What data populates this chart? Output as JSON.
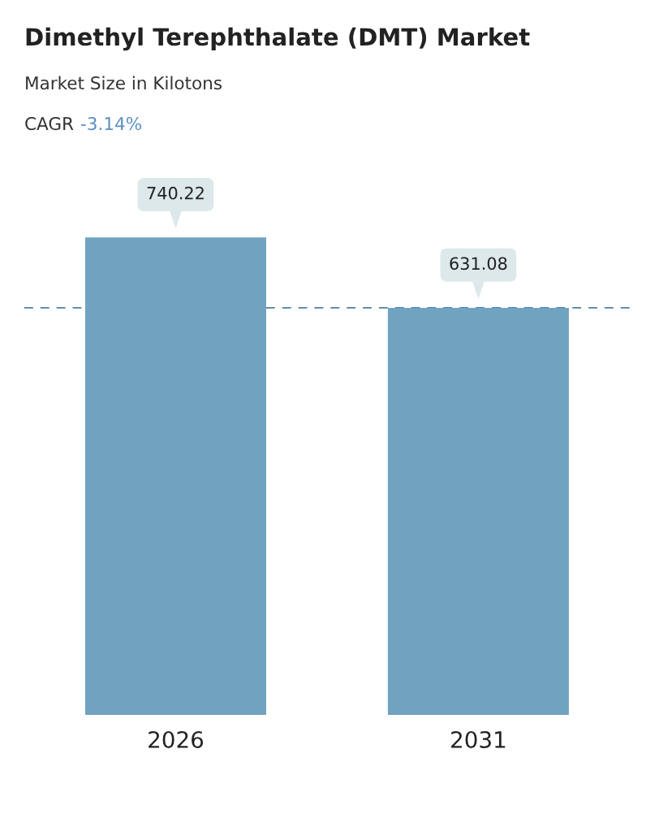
{
  "chart_data": {
    "type": "bar",
    "title": "Dimethyl Terephthalate (DMT) Market",
    "subtitle": "Market Size in Kilotons",
    "annotations": [
      "CAGR",
      "-3.14%"
    ],
    "categories": [
      "2026",
      "2031"
    ],
    "values": [
      740.22,
      631.08
    ],
    "color": "#6fa3c0",
    "data_labels": true,
    "ref_lines": [
      {
        "axis": "y",
        "value": 631.08,
        "color": "#4f7fa3",
        "line_style": "dashed"
      }
    ]
  }
}
